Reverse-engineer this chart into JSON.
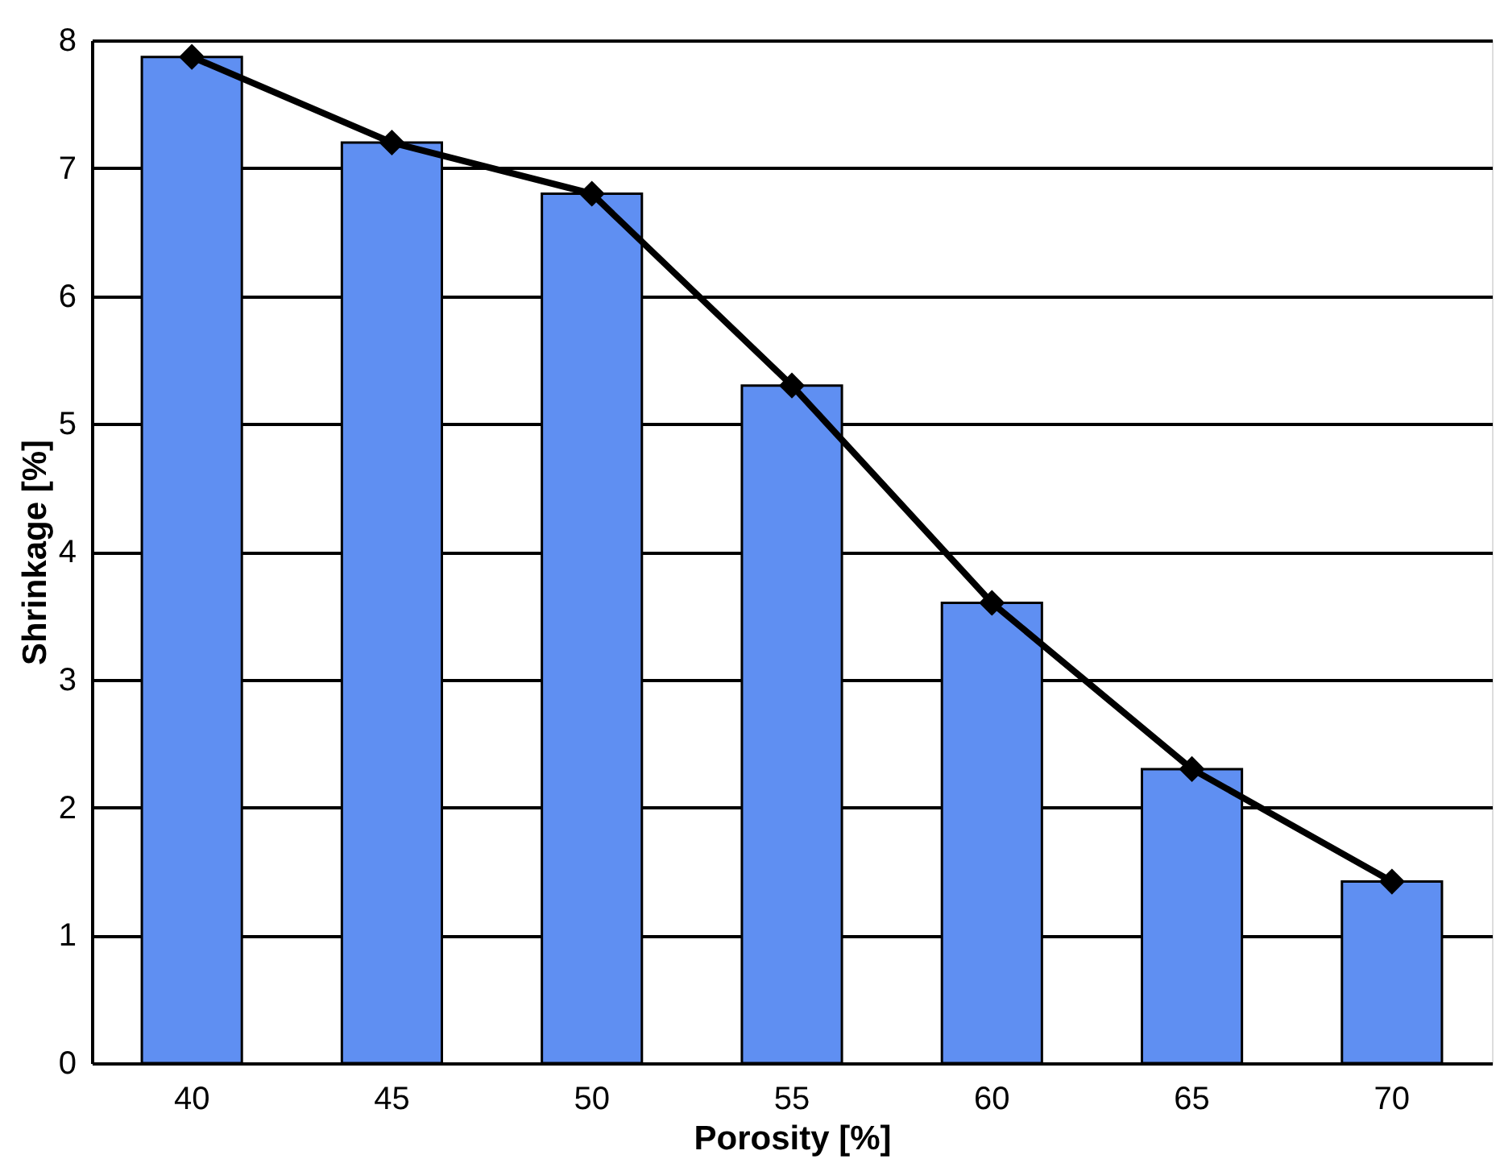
{
  "chart_data": {
    "type": "bar",
    "xlabel": "Porosity [%]",
    "ylabel": "Shrinkage [%]",
    "categories": [
      "40",
      "45",
      "50",
      "55",
      "60",
      "65",
      "70"
    ],
    "ylim": [
      0,
      8
    ],
    "yticks": [
      0,
      1,
      2,
      3,
      4,
      5,
      6,
      7,
      8
    ],
    "grid": "y",
    "marker": "diamond",
    "line_style": "solid",
    "series": [
      {
        "color": "#5f8ff2",
        "values": [
          7.87,
          7.2,
          6.8,
          5.3,
          3.6,
          2.3,
          1.42
        ]
      },
      {
        "type": "line",
        "color": "#000000",
        "values": [
          7.87,
          7.2,
          6.8,
          5.3,
          3.6,
          2.3,
          1.42
        ]
      }
    ]
  }
}
